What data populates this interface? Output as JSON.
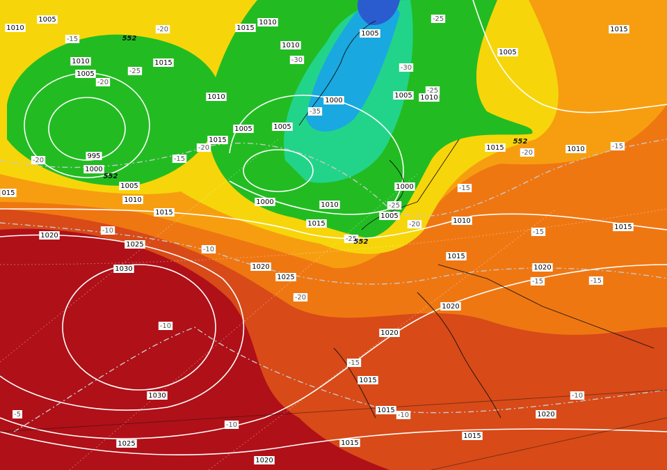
{
  "pressure_labels": [
    "1010",
    "1005",
    "1015",
    "1010",
    "1005",
    "1015",
    "1010",
    "1005",
    "1010",
    "1015",
    "1005",
    "1010",
    "1005",
    "1010",
    "1000",
    "1005",
    "1005",
    "1015",
    "1015",
    "1010",
    "995",
    "1000",
    "1005",
    "1010",
    "1000",
    "1015",
    "1000",
    "1010",
    "1005",
    "1015",
    "1010",
    "1015",
    "1020",
    "1025",
    "1015",
    "1020",
    "1030",
    "1020",
    "1025",
    "1020",
    "1020",
    "1015",
    "1015",
    "1030",
    "1020",
    "1025",
    "1015",
    "1015",
    "1020",
    "015"
  ],
  "temperature_labels": [
    "-15",
    "-20",
    "-25",
    "-25",
    "-20",
    "-30",
    "-30",
    "-25",
    "-35",
    "-20",
    "-15",
    "-20",
    "-20",
    "-15",
    "-15",
    "-25",
    "-20",
    "-10",
    "-25",
    "-10",
    "-15",
    "-15",
    "-15",
    "-20",
    "-10",
    "-15",
    "-10",
    "-10",
    "-10",
    "-5"
  ],
  "height_labels": [
    "552",
    "552",
    "552",
    "552"
  ]
}
